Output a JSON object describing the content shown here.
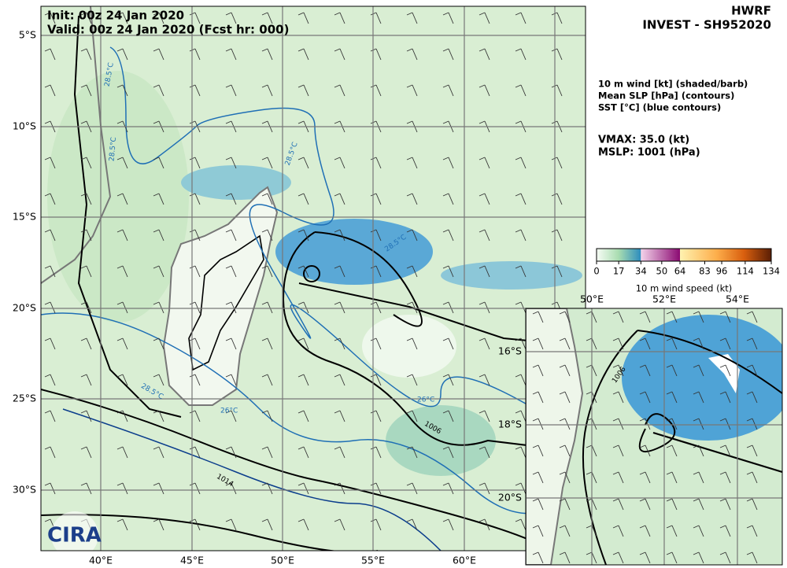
{
  "header": {
    "init": "Init:   00z 24 Jan 2020",
    "valid": "Valid: 00z 24 Jan 2020 (Fcst hr: 000)",
    "model": "HWRF",
    "storm": "INVEST - SH952020"
  },
  "legend": {
    "lines": [
      "10 m wind [kt] (shaded/barb)",
      "Mean SLP [hPa] (contours)",
      "SST [°C] (blue contours)"
    ],
    "vmax": "VMAX:  35.0 (kt)",
    "mslp": "MSLP: 1001 (hPa)"
  },
  "colorbar": {
    "label": "10 m wind speed (kt)",
    "range": [
      0,
      134
    ],
    "ticks": [
      0,
      17,
      34,
      50,
      64,
      83,
      96,
      114,
      134
    ]
  },
  "map": {
    "lat_labels": [
      "5°S",
      "10°S",
      "15°S",
      "20°S",
      "25°S",
      "30°S"
    ],
    "lon_labels": [
      "40°E",
      "45°E",
      "50°E",
      "55°E",
      "60°E"
    ],
    "contour_labels": [
      "28.5°C",
      "28.5°C",
      "28.5°C",
      "28.5°C",
      "28.5°C",
      "26°C",
      "26°C",
      "1006",
      "1014"
    ]
  },
  "inset": {
    "lon_labels": [
      "50°E",
      "52°E",
      "54°E"
    ],
    "lat_labels": [
      "16°S",
      "18°S",
      "20°S"
    ],
    "contour_labels": [
      "1006"
    ]
  },
  "logo": "CIRA"
}
